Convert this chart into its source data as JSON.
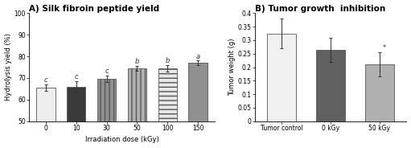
{
  "panel_A": {
    "title": "A) Silk fibroin peptide yield",
    "xlabel": "Irradiation dose (kGy)",
    "ylabel": "Hydrolysis yield (%)",
    "categories": [
      "0",
      "10",
      "30",
      "50",
      "100",
      "150"
    ],
    "values": [
      65.5,
      66.0,
      69.5,
      74.5,
      74.5,
      77.0
    ],
    "errors": [
      1.5,
      2.5,
      1.5,
      1.2,
      1.5,
      1.0
    ],
    "ylim": [
      50,
      100
    ],
    "yticks": [
      50,
      60,
      70,
      80,
      90,
      100
    ],
    "bar_colors": [
      "#eeeeee",
      "#3a3a3a",
      "#909090",
      "#b0b0b0",
      "#e8e8e8",
      "#909090"
    ],
    "bar_edgecolors": [
      "#555555",
      "#555555",
      "#555555",
      "#555555",
      "#555555",
      "#555555"
    ],
    "annotations": [
      "c",
      "c",
      "c",
      "b",
      "b",
      "a"
    ],
    "hatch": [
      "",
      "",
      "|||",
      "|||",
      "---",
      ""
    ]
  },
  "panel_B": {
    "title": "B) Tumor growth  inhibition",
    "xlabel": "",
    "ylabel": "Tumor weight (g)",
    "categories": [
      "Tumor control",
      "0 kGy",
      "50 kGy"
    ],
    "values": [
      0.325,
      0.263,
      0.21
    ],
    "errors": [
      0.055,
      0.045,
      0.045
    ],
    "ylim": [
      0,
      0.4
    ],
    "yticks": [
      0,
      0.05,
      0.1,
      0.15,
      0.2,
      0.25,
      0.3,
      0.35,
      0.4
    ],
    "bar_colors": [
      "#f0f0f0",
      "#606060",
      "#b0b0b0"
    ],
    "bar_edgecolors": [
      "#555555",
      "#555555",
      "#555555"
    ],
    "annotations": [
      "",
      "",
      "*"
    ]
  },
  "bg_color": "#ffffff",
  "title_fontsize": 7.5,
  "label_fontsize": 6,
  "tick_fontsize": 5.5,
  "annot_fontsize": 6
}
